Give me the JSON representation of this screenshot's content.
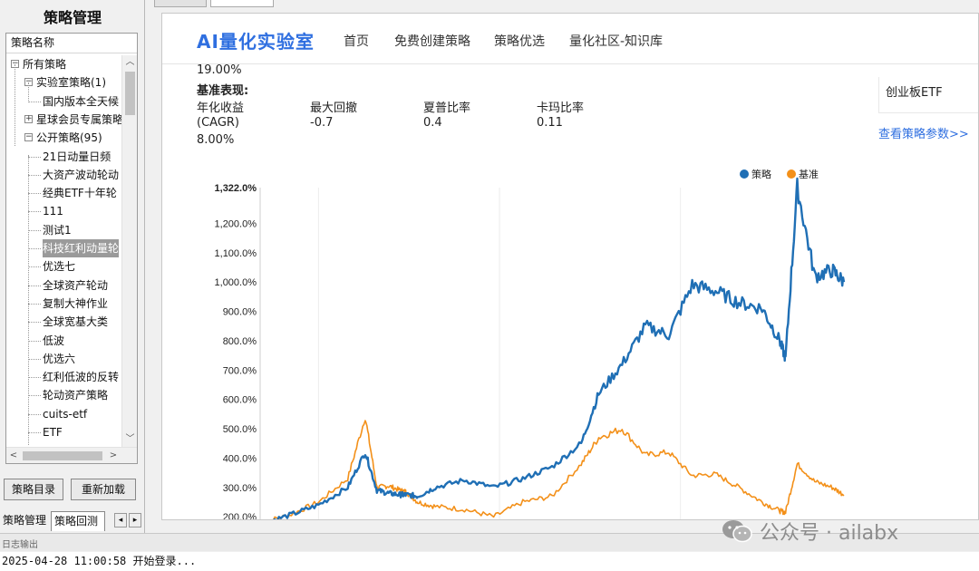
{
  "left_panel": {
    "title": "策略管理",
    "tree_header": "策略名称",
    "tree": [
      {
        "label": "所有策略",
        "level": 0,
        "expander": "−"
      },
      {
        "label": "实验室策略(1)",
        "level": 1,
        "expander": "−"
      },
      {
        "label": "国内版本全天候",
        "level": 2
      },
      {
        "label": "星球会员专属策略",
        "level": 1,
        "expander": "+"
      },
      {
        "label": "公开策略(95)",
        "level": 1,
        "expander": "−"
      },
      {
        "label": "21日动量日频",
        "level": 2
      },
      {
        "label": "大资产波动轮动",
        "level": 2
      },
      {
        "label": "经典ETF十年轮",
        "level": 2
      },
      {
        "label": "111",
        "level": 2
      },
      {
        "label": "测试1",
        "level": 2
      },
      {
        "label": "科技红利动量轮",
        "level": 2,
        "selected": true
      },
      {
        "label": "优选七",
        "level": 2
      },
      {
        "label": "全球资产轮动",
        "level": 2
      },
      {
        "label": "复制大神作业",
        "level": 2
      },
      {
        "label": "全球宽基大类",
        "level": 2
      },
      {
        "label": "低波",
        "level": 2
      },
      {
        "label": "优选六",
        "level": 2
      },
      {
        "label": "红利低波的反转",
        "level": 2
      },
      {
        "label": "轮动资产策略",
        "level": 2
      },
      {
        "label": "cuits-etf",
        "level": 2
      },
      {
        "label": "ETF",
        "level": 2
      }
    ],
    "buttons": {
      "catalog": "策略目录",
      "reload": "重新加载"
    },
    "tabs": {
      "manage": "策略管理",
      "backtest": "策略回测"
    }
  },
  "website": {
    "logo": "AI量化实验室",
    "nav": [
      "首页",
      "免费创建策略",
      "策略优选",
      "量化社区-知识库"
    ],
    "top_value": "19.00%",
    "benchmark_title": "基准表现:",
    "metrics": {
      "headers": [
        "年化收益",
        "最大回撤",
        "夏普比率",
        "卡玛比率"
      ],
      "values": [
        "(CAGR)",
        "-0.7",
        "0.4",
        "0.11"
      ],
      "cagr": "8.00%"
    },
    "side_label": "创业板ETF",
    "view_params": "查看策略参数>>"
  },
  "chart_data": {
    "type": "line",
    "legend": [
      "策略",
      "基准"
    ],
    "legend_position": "top-right",
    "series_colors": {
      "策略": "#1f6fb5",
      "基准": "#f39019"
    },
    "y_ticks": [
      "1,322.0%",
      "1,200.0%",
      "1,100.0%",
      "1,000.0%",
      "900.0%",
      "800.0%",
      "700.0%",
      "600.0%",
      "500.0%",
      "400.0%",
      "300.0%",
      "200.0%"
    ],
    "y_range": [
      185,
      1322
    ],
    "grid": "vertical",
    "x": [
      0,
      0.05,
      0.1,
      0.15,
      0.18,
      0.2,
      0.22,
      0.24,
      0.25,
      0.27,
      0.3,
      0.35,
      0.4,
      0.45,
      0.5,
      0.55,
      0.58,
      0.62,
      0.66,
      0.7,
      0.74,
      0.78,
      0.82,
      0.86,
      0.89,
      0.9,
      0.92,
      0.95,
      0.98,
      1.0
    ],
    "series": [
      {
        "name": "策略",
        "values": [
          175,
          205,
          240,
          300,
          420,
          290,
          280,
          275,
          275,
          270,
          300,
          325,
          300,
          330,
          370,
          450,
          620,
          720,
          850,
          820,
          990,
          970,
          930,
          910,
          800,
          740,
          1322,
          1020,
          1040,
          1000
        ]
      },
      {
        "name": "基准",
        "values": [
          180,
          205,
          250,
          330,
          540,
          300,
          305,
          290,
          285,
          250,
          235,
          225,
          200,
          250,
          270,
          380,
          470,
          500,
          410,
          420,
          340,
          345,
          300,
          250,
          220,
          215,
          380,
          320,
          300,
          275
        ]
      }
    ]
  },
  "log": {
    "section": "日志输出",
    "line": "2025-04-28 11:00:58 开始登录..."
  },
  "watermark": "公众号 · ailabx"
}
